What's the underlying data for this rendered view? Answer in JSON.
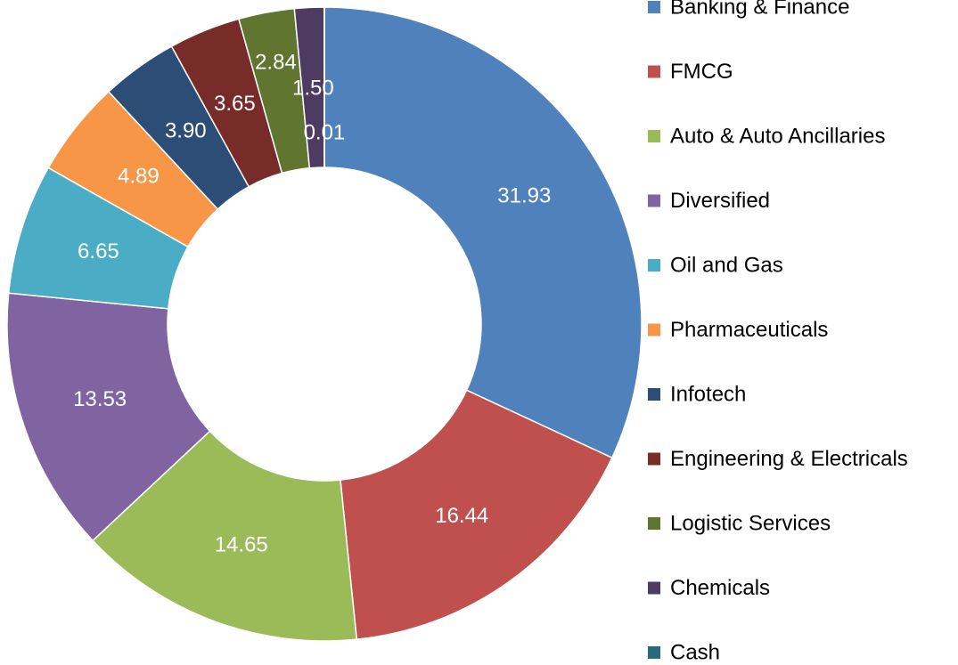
{
  "chart_data": {
    "type": "donut",
    "categories": [
      "Banking & Finance",
      "FMCG",
      "Auto & Auto Ancillaries",
      "Diversified",
      "Oil and Gas",
      "Pharmaceuticals",
      "Infotech",
      "Engineering & Electricals",
      "Logistic Services",
      "Chemicals",
      "Cash"
    ],
    "values": [
      31.93,
      16.44,
      14.65,
      13.53,
      6.65,
      4.89,
      3.9,
      3.65,
      2.84,
      1.5,
      0.01
    ],
    "value_labels": [
      "31.93",
      "16.44",
      "14.65",
      "13.53",
      "6.65",
      "4.89",
      "3.90",
      "3.65",
      "2.84",
      "1.50",
      "0.01"
    ],
    "colors": [
      "#4f81bd",
      "#c0504d",
      "#9bbb59",
      "#8064a2",
      "#4bacc6",
      "#f79646",
      "#2c4d75",
      "#772c2a",
      "#5f7530",
      "#4d3b62",
      "#276a7c"
    ],
    "legend": "right"
  }
}
